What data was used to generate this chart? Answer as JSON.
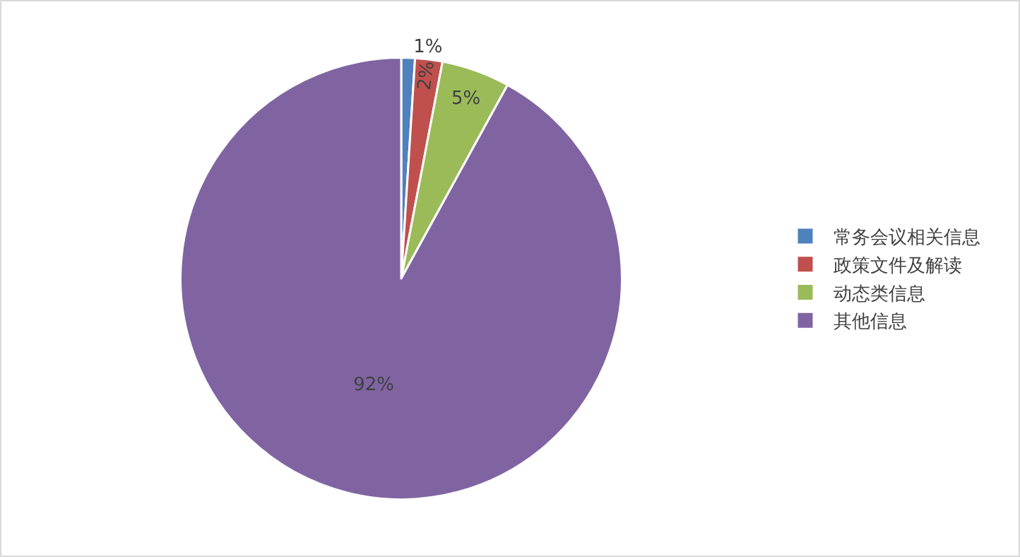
{
  "chart_data": {
    "type": "pie",
    "categories": [
      "常务会议相关信息",
      "政策文件及解读",
      "动态类信息",
      "其他信息"
    ],
    "values": [
      1,
      2,
      5,
      92
    ],
    "colors": [
      "#4f81bd",
      "#c0504d",
      "#9bbb59",
      "#8064a2"
    ],
    "value_labels": [
      "1%",
      "2%",
      "5%",
      "92%"
    ],
    "legend": "right"
  }
}
